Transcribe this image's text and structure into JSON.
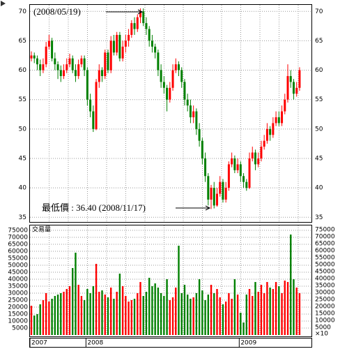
{
  "chart_data": {
    "type": "candlestick",
    "categories": [
      "2007",
      null,
      null,
      null,
      null,
      null,
      null,
      null,
      null,
      null,
      null,
      null,
      null,
      null,
      null,
      null,
      null,
      null,
      null,
      "2008",
      null,
      null,
      null,
      null,
      null,
      null,
      null,
      null,
      null,
      null,
      null,
      null,
      null,
      null,
      null,
      null,
      null,
      null,
      null,
      null,
      null,
      null,
      null,
      null,
      null,
      null,
      null,
      null,
      null,
      null,
      null,
      null,
      null,
      null,
      null,
      null,
      null,
      null,
      null,
      null,
      null,
      null,
      null,
      null,
      null,
      null,
      null,
      null,
      null,
      null,
      null,
      "2009",
      null,
      null,
      null,
      null,
      null,
      null,
      null,
      null,
      null,
      null,
      null,
      null,
      null,
      null,
      null,
      null,
      null,
      null,
      null,
      null
    ],
    "open": [
      62,
      62.5,
      62,
      61,
      60,
      61,
      64,
      65,
      62,
      61,
      60,
      59,
      60,
      61,
      62,
      60,
      59,
      61,
      62,
      60,
      55,
      53,
      50,
      58,
      60,
      59,
      63,
      60,
      65,
      63,
      66,
      62,
      64,
      65,
      66,
      68,
      67,
      69,
      70,
      68,
      67,
      65,
      64,
      63,
      60,
      58,
      57,
      55,
      57,
      60,
      61,
      60,
      58,
      55,
      54,
      52,
      53,
      50,
      48,
      45,
      42,
      38,
      40,
      37,
      39,
      41,
      38,
      40,
      44,
      45,
      43,
      44,
      42,
      41,
      40,
      45,
      46,
      44,
      45,
      47,
      48,
      50,
      49,
      51,
      52,
      51,
      53,
      55,
      59,
      58,
      56,
      57
    ],
    "high": [
      63.2,
      63,
      62.5,
      61.8,
      62,
      64.8,
      66,
      65.5,
      63,
      61.5,
      60.8,
      61,
      62,
      62.8,
      62.5,
      61,
      61.8,
      62.5,
      62.5,
      60.5,
      56,
      54,
      58.5,
      61,
      60.5,
      63.5,
      63.5,
      65.8,
      66,
      66.5,
      66.5,
      65,
      66,
      67,
      68.5,
      69,
      69.5,
      70.5,
      70.5,
      69,
      67.5,
      66,
      64.5,
      63.5,
      61,
      59,
      57.5,
      58,
      61,
      62,
      61.5,
      60.5,
      58.5,
      56,
      55,
      54,
      53.5,
      51,
      48.5,
      46,
      42.5,
      40.5,
      41,
      40,
      42,
      41.5,
      41,
      44.5,
      46,
      45.5,
      45,
      44.5,
      42.5,
      41.5,
      46,
      47,
      46.5,
      46,
      48,
      49,
      51,
      50.5,
      52,
      53,
      53,
      54,
      56,
      61,
      60,
      58.5,
      58,
      60.5
    ],
    "low": [
      61.5,
      61.2,
      60,
      59,
      59.5,
      60.5,
      63.5,
      61.5,
      60,
      58.5,
      58,
      58.5,
      59.5,
      60.5,
      59.5,
      58,
      58.5,
      60.5,
      59,
      54,
      52,
      49.5,
      49.8,
      57,
      58,
      58.5,
      59.5,
      59.5,
      62.5,
      62.5,
      61.5,
      61.5,
      63,
      64,
      65.5,
      66,
      66.5,
      68,
      67.5,
      66,
      64,
      63,
      62,
      59,
      57,
      56,
      53,
      54.5,
      56.5,
      59.5,
      59,
      57,
      54,
      53,
      51,
      51,
      49,
      47,
      44,
      41,
      37,
      36.4,
      36.5,
      36.8,
      38.5,
      37.5,
      37.5,
      39.5,
      43.5,
      42.5,
      42.5,
      41,
      40,
      39.5,
      39.8,
      44.5,
      43,
      43.5,
      44.5,
      46.5,
      47.5,
      48,
      48.5,
      50.5,
      50.5,
      50.5,
      52.5,
      54.5,
      57,
      55,
      55.5,
      56.5
    ],
    "close": [
      62.5,
      62,
      61,
      60,
      61,
      64,
      65,
      62,
      61,
      60,
      59,
      60,
      61,
      62,
      60,
      59,
      61,
      62,
      60,
      55,
      53,
      50,
      58,
      60,
      59,
      63,
      60,
      65,
      63,
      66,
      62,
      64,
      65,
      66,
      68,
      67,
      69,
      70,
      68,
      67,
      65,
      64,
      63,
      60,
      58,
      57,
      55,
      57,
      60,
      61,
      60,
      58,
      55,
      54,
      52,
      53,
      50,
      48,
      45,
      42,
      38,
      40,
      37,
      39,
      41,
      38,
      40,
      44,
      45,
      43,
      44,
      42,
      41,
      40,
      45,
      46,
      44,
      45,
      47,
      48,
      50,
      49,
      51,
      52,
      51,
      53,
      55,
      59,
      58,
      56,
      57,
      60
    ],
    "ylim": [
      34.2,
      71.1
    ],
    "yticks": [
      35,
      40,
      45,
      50,
      55,
      60,
      65,
      70
    ],
    "up_color": "#ff0000",
    "down_color": "#008000",
    "grid": true,
    "annotations": [
      {
        "text": "(2008/05/19)",
        "color": "#ff0000"
      },
      {
        "text": "最低價 : 36.40 (2008/11/17)",
        "color": "#008000"
      }
    ],
    "volume": {
      "title": "交易量",
      "unit": "×10",
      "values": [
        21000,
        14000,
        15000,
        22000,
        25000,
        30000,
        24000,
        26000,
        28000,
        29000,
        30000,
        31000,
        33000,
        35000,
        48000,
        59000,
        36000,
        28000,
        25000,
        33000,
        30000,
        35000,
        51000,
        31000,
        32000,
        29000,
        27000,
        34000,
        26000,
        31000,
        44000,
        35000,
        28000,
        24000,
        25000,
        26000,
        30000,
        38000,
        28000,
        31000,
        41000,
        35000,
        37000,
        34000,
        30000,
        28000,
        40000,
        25000,
        27000,
        34000,
        64000,
        30000,
        36000,
        29000,
        26000,
        27000,
        30000,
        40000,
        32000,
        25000,
        29000,
        36000,
        30000,
        33000,
        27000,
        22000,
        24000,
        30000,
        26000,
        40000,
        29000,
        16000,
        9000,
        29000,
        33000,
        28000,
        38000,
        31000,
        36000,
        30000,
        38000,
        34000,
        33000,
        38000,
        35000,
        30000,
        39000,
        38000,
        72000,
        40000,
        34000,
        30000
      ],
      "ylim": [
        0,
        78500
      ],
      "yticks": [
        5000,
        10000,
        15000,
        20000,
        25000,
        30000,
        35000,
        40000,
        45000,
        50000,
        55000,
        60000,
        65000,
        70000,
        75000
      ]
    }
  }
}
